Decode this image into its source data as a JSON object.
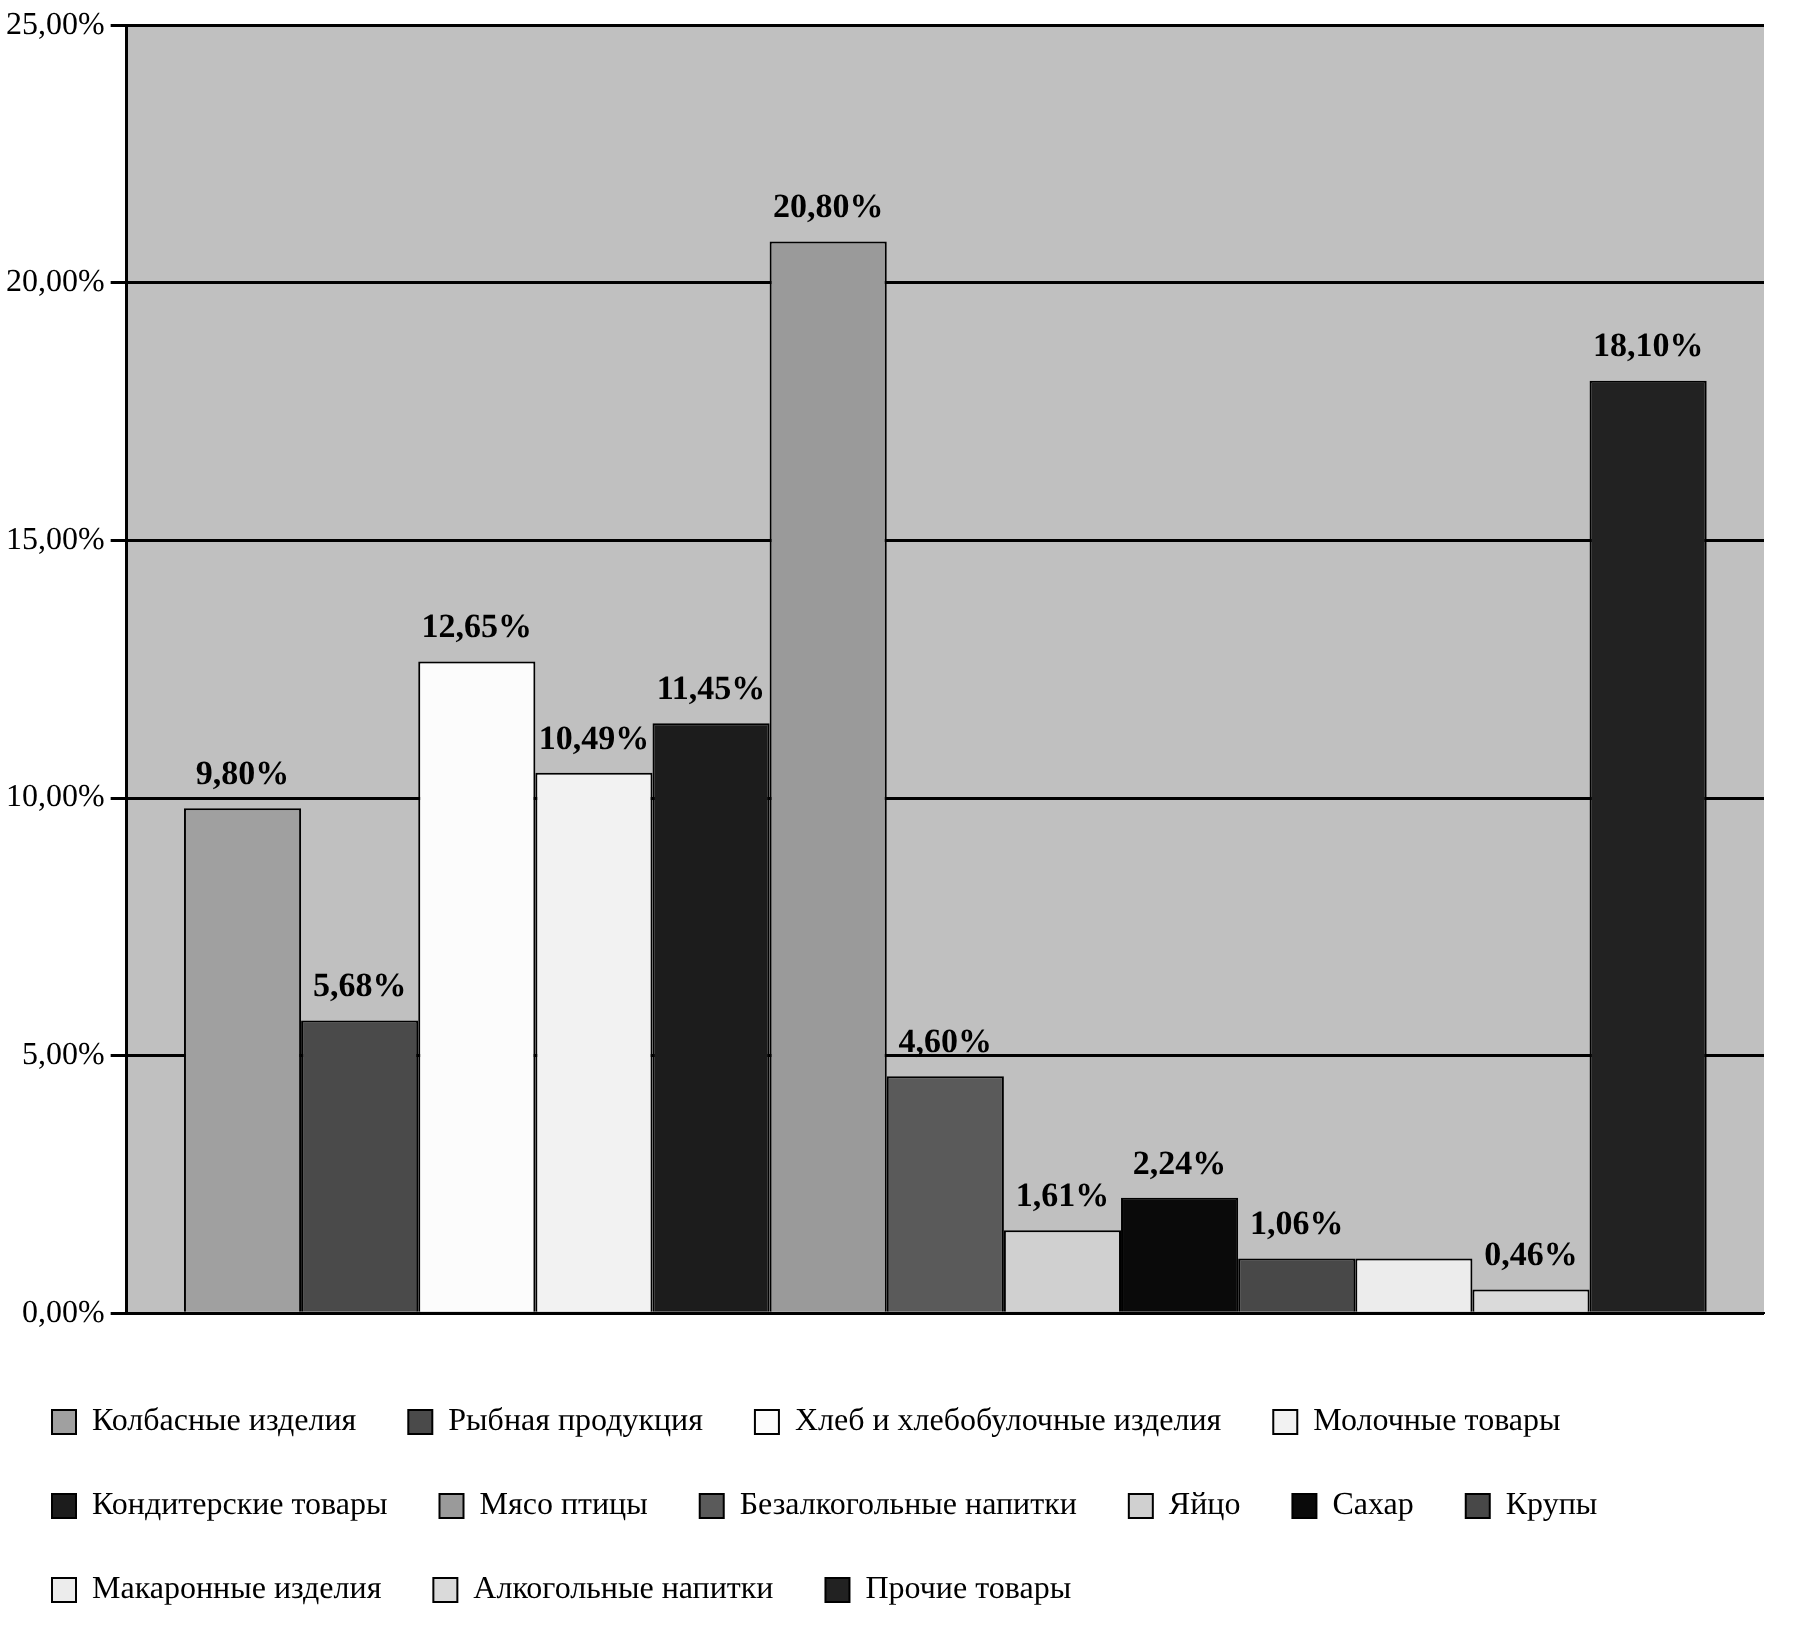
{
  "chart_data": {
    "type": "bar",
    "categories": [
      null
    ],
    "ylim": [
      0,
      25
    ],
    "yticks": [
      {
        "value": 0,
        "label": "0,00%"
      },
      {
        "value": 5,
        "label": "5,00%"
      },
      {
        "value": 10,
        "label": "10,00%"
      },
      {
        "value": 15,
        "label": "15,00%"
      },
      {
        "value": 20,
        "label": "20,00%"
      },
      {
        "value": 25,
        "label": "25,00%"
      }
    ],
    "grid": "y",
    "legend": "bottom",
    "series": [
      {
        "name": "Колбасные изделия",
        "color": "#a0a0a0",
        "values": [
          9.8
        ],
        "value_labels": [
          "9,80%"
        ]
      },
      {
        "name": "Рыбная продукция",
        "color": "#4a4a4a",
        "values": [
          5.68
        ],
        "value_labels": [
          "5,68%"
        ]
      },
      {
        "name": "Хлеб и хлебобулочные изделия",
        "color": "#fcfcfc",
        "values": [
          12.65
        ],
        "value_labels": [
          "12,65%"
        ]
      },
      {
        "name": "Молочные товары",
        "color": "#f2f2f2",
        "values": [
          10.49
        ],
        "value_labels": [
          "10,49%"
        ]
      },
      {
        "name": "Кондитерские товары",
        "color": "#1c1c1c",
        "values": [
          11.45
        ],
        "value_labels": [
          "11,45%"
        ]
      },
      {
        "name": "Мясо птицы",
        "color": "#9a9a9a",
        "values": [
          20.8
        ],
        "value_labels": [
          "20,80%"
        ]
      },
      {
        "name": "Безалкогольные напитки",
        "color": "#5a5a5a",
        "values": [
          4.6
        ],
        "value_labels": [
          "4,60%"
        ]
      },
      {
        "name": "Яйцо",
        "color": "#d0d0d0",
        "values": [
          1.61
        ],
        "value_labels": [
          "1,61%"
        ]
      },
      {
        "name": "Сахар",
        "color": "#0a0a0a",
        "values": [
          2.24
        ],
        "value_labels": [
          "2,24%"
        ]
      },
      {
        "name": "Крупы",
        "color": "#484848",
        "values": [
          1.06
        ],
        "value_labels": [
          "1,06%"
        ]
      },
      {
        "name": "Макаронные изделия",
        "color": "#ececec",
        "values": [
          1.06
        ],
        "value_labels": [
          null
        ]
      },
      {
        "name": "Алкогольные напитки",
        "color": "#dadada",
        "values": [
          0.46
        ],
        "value_labels": [
          "0,46%"
        ]
      },
      {
        "name": "Прочие товары",
        "color": "#222222",
        "values": [
          18.1
        ],
        "value_labels": [
          "18,10%"
        ]
      }
    ]
  }
}
